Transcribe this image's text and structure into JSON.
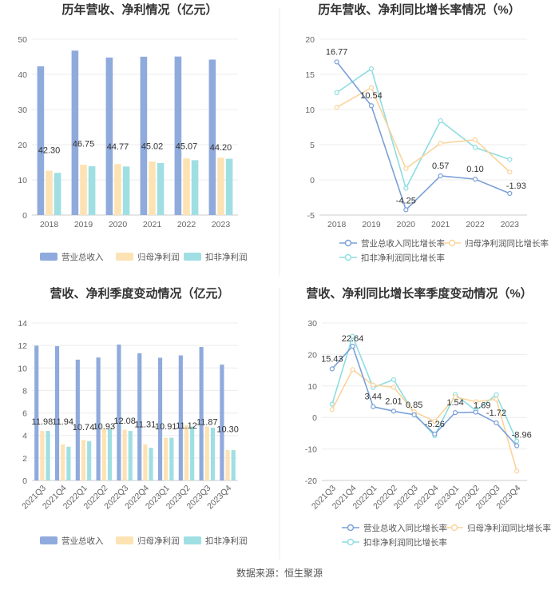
{
  "footer": "数据来源：恒生聚源",
  "colors": {
    "revenue": "#8faadc",
    "parent_profit": "#fde2b4",
    "deducted_profit": "#9fdfe3",
    "line_revenue": "#7a9fd8",
    "line_parent": "#fad39b",
    "line_deducted": "#8edde0"
  },
  "chart_data": [
    {
      "type": "bar",
      "title": "历年营收、净利情况（亿元）",
      "categories": [
        "2018",
        "2019",
        "2020",
        "2021",
        "2022",
        "2023"
      ],
      "ylim": [
        0,
        50
      ],
      "yticks": [
        "0",
        "10",
        "20",
        "30",
        "40",
        "50"
      ],
      "series": [
        {
          "name": "营业总收入",
          "values": [
            42.3,
            46.75,
            44.77,
            45.02,
            45.07,
            44.2
          ],
          "labels": [
            "42.30",
            "46.75",
            "44.77",
            "45.02",
            "45.07",
            "44.20"
          ]
        },
        {
          "name": "归母净利润",
          "values": [
            12.6,
            14.3,
            14.5,
            15.2,
            16.1,
            16.3
          ]
        },
        {
          "name": "扣非净利润",
          "values": [
            12.0,
            13.9,
            13.8,
            14.8,
            15.6,
            16.0
          ]
        }
      ]
    },
    {
      "type": "line",
      "title": "历年营收、净利同比增长率情况（%）",
      "categories": [
        "2018",
        "2019",
        "2020",
        "2021",
        "2022",
        "2023"
      ],
      "ylim": [
        -5,
        20
      ],
      "yticks": [
        "-5",
        "0",
        "5",
        "10",
        "15",
        "20"
      ],
      "series": [
        {
          "name": "营业总收入同比增长率",
          "values": [
            16.77,
            10.54,
            -4.25,
            0.57,
            0.1,
            -1.93
          ],
          "labels": [
            "16.77",
            "10.54",
            "-4.25",
            "0.57",
            "0.10",
            "-1.93"
          ]
        },
        {
          "name": "归母净利润同比增长率",
          "values": [
            10.3,
            13.1,
            1.6,
            5.2,
            5.7,
            1.1
          ]
        },
        {
          "name": "扣非净利润同比增长率",
          "values": [
            12.4,
            15.8,
            -1.2,
            8.4,
            4.6,
            2.9
          ]
        }
      ]
    },
    {
      "type": "bar",
      "title": "营收、净利季度变动情况（亿元）",
      "categories": [
        "2021Q3",
        "2021Q4",
        "2022Q1",
        "2022Q2",
        "2022Q3",
        "2022Q4",
        "2023Q1",
        "2023Q2",
        "2023Q3",
        "2023Q4"
      ],
      "ylim": [
        0,
        14
      ],
      "yticks": [
        "0",
        "2",
        "4",
        "6",
        "8",
        "10",
        "12",
        "14"
      ],
      "series": [
        {
          "name": "营业总收入",
          "values": [
            11.98,
            11.94,
            10.74,
            10.93,
            12.08,
            11.31,
            10.91,
            11.12,
            11.87,
            10.3
          ],
          "labels": [
            "11.98",
            "11.94",
            "10.74",
            "10.93",
            "12.08",
            "11.31",
            "10.91",
            "11.12",
            "11.87",
            "10.30"
          ]
        },
        {
          "name": "归母净利润",
          "values": [
            4.4,
            3.2,
            3.6,
            4.6,
            4.5,
            3.2,
            3.8,
            4.9,
            4.8,
            2.7
          ]
        },
        {
          "name": "扣非净利润",
          "values": [
            4.4,
            3.0,
            3.5,
            4.6,
            4.4,
            2.9,
            3.8,
            4.8,
            4.7,
            2.7
          ]
        }
      ]
    },
    {
      "type": "line",
      "title": "营收、净利同比增长率季度变动情况（%）",
      "categories": [
        "2021Q3",
        "2021Q4",
        "2022Q1",
        "2022Q2",
        "2022Q3",
        "2022Q4",
        "2023Q1",
        "2023Q2",
        "2023Q3",
        "2023Q4"
      ],
      "ylim": [
        -20,
        30
      ],
      "yticks": [
        "-20",
        "-10",
        "0",
        "10",
        "20",
        "30"
      ],
      "series": [
        {
          "name": "营业总收入同比增长率",
          "values": [
            15.43,
            22.64,
            3.44,
            2.01,
            0.85,
            -5.26,
            1.54,
            1.69,
            -1.72,
            -8.96
          ],
          "labels": [
            "15.43",
            "22.64",
            "3.44",
            "2.01",
            "0.85",
            "-5.26",
            "1.54",
            "1.69",
            "-1.72",
            "-8.96"
          ]
        },
        {
          "name": "归母净利润同比增长率",
          "values": [
            2.5,
            15.2,
            10.3,
            9.6,
            1.8,
            -1.2,
            6.5,
            5.0,
            5.8,
            -17.0
          ]
        },
        {
          "name": "扣非净利润同比增长率",
          "values": [
            4.2,
            25.8,
            9.5,
            12.0,
            1.2,
            -5.8,
            7.3,
            2.2,
            7.2,
            -7.5
          ]
        }
      ]
    }
  ]
}
